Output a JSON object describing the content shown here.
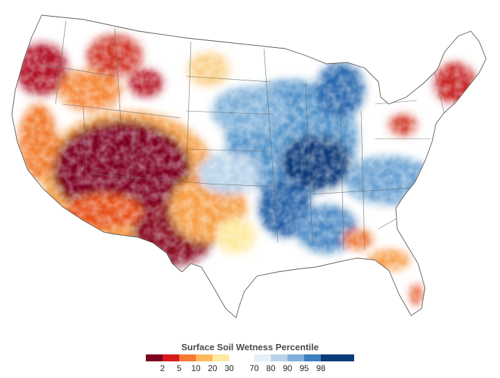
{
  "legend": {
    "title": "Surface Soil Wetness Percentile",
    "dry_colors": [
      "#7e0322",
      "#d7191c",
      "#f47a34",
      "#fdba5c",
      "#feeaa0"
    ],
    "dry_ticks": [
      "2",
      "5",
      "10",
      "20",
      "30"
    ],
    "wet_colors": [
      "#e5eff7",
      "#b9d3ea",
      "#7fb0d9",
      "#3d7fc0",
      "#0b3b7a"
    ],
    "wet_ticks": [
      "70",
      "80",
      "90",
      "95",
      "98"
    ]
  },
  "map": {
    "region": "Contiguous United States",
    "dry_regions": [
      "Southwest",
      "Texas",
      "Pacific Northwest",
      "Northern Rockies",
      "New England"
    ],
    "wet_regions": [
      "Upper Midwest",
      "Mississippi Valley",
      "Great Lakes",
      "Southeast"
    ]
  }
}
